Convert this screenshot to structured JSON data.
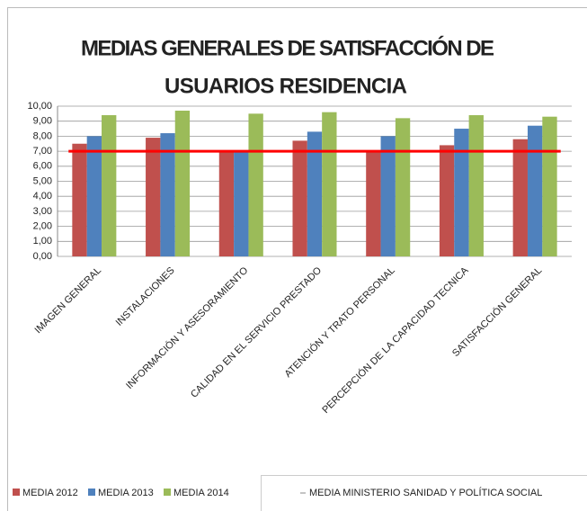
{
  "chart_data": {
    "type": "bar",
    "title": [
      "MEDIAS GENERALES DE SATISFACCIÓN DE",
      "USUARIOS RESIDENCIA"
    ],
    "categories": [
      "IMAGEN GENERAL",
      "INSTALACIONES",
      "INFORMACIÓN Y ASESORAMIENTO",
      "CALIDAD EN EL SERVICIO PRESTADO",
      "ATENCIÓN Y TRATO PERSONAL",
      "PERCEPCIÓN DE LA CAPACIDAD TECNICA",
      "SATISFACCIÓN GENERAL"
    ],
    "series": [
      {
        "name": "MEDIA 2012",
        "color": "#c0504d",
        "values": [
          7.5,
          7.9,
          7.0,
          7.7,
          7.0,
          7.4,
          7.8
        ]
      },
      {
        "name": "MEDIA 2013",
        "color": "#4f81bd",
        "values": [
          8.0,
          8.2,
          7.0,
          8.3,
          8.0,
          8.5,
          8.7
        ]
      },
      {
        "name": "MEDIA 2014",
        "color": "#9bbb59",
        "values": [
          9.4,
          9.7,
          9.5,
          9.6,
          9.2,
          9.4,
          9.3
        ]
      },
      {
        "name": "MEDIA MINISTERIO SANIDAD Y POLÍTICA SOCIAL",
        "color": "#ff0000",
        "type": "line",
        "values": [
          7,
          7,
          7,
          7,
          7,
          7,
          7
        ]
      }
    ],
    "ylim": [
      0,
      10
    ],
    "yticks": [
      {
        "value": 0,
        "label": "0,00"
      },
      {
        "value": 1,
        "label": "1,00"
      },
      {
        "value": 2,
        "label": "2,00"
      },
      {
        "value": 3,
        "label": "3,00"
      },
      {
        "value": 4,
        "label": "4,00"
      },
      {
        "value": 5,
        "label": "5,00"
      },
      {
        "value": 6,
        "label": "6,00"
      },
      {
        "value": 7,
        "label": "7,00"
      },
      {
        "value": 8,
        "label": "8,00"
      },
      {
        "value": 9,
        "label": "9,00"
      },
      {
        "value": 10,
        "label": "10,00"
      }
    ],
    "grid": true
  }
}
